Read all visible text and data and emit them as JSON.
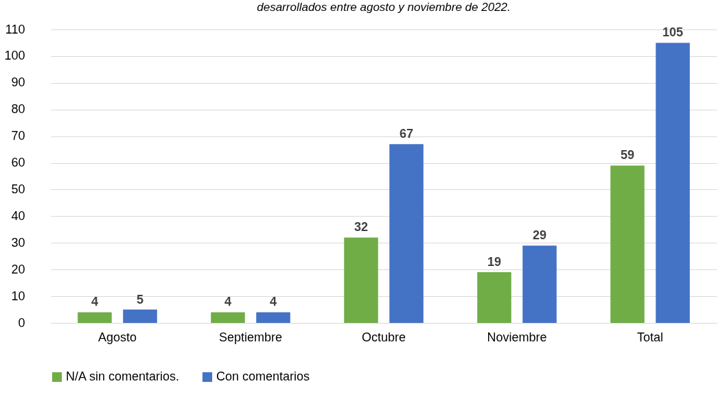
{
  "chart_data": {
    "type": "bar",
    "title": "desarrollados entre agosto y noviembre de 2022.",
    "categories": [
      "Agosto",
      "Septiembre",
      "Octubre",
      "Noviembre",
      "Total"
    ],
    "series": [
      {
        "name": "N/A sin comentarios.",
        "color": "#70ad47",
        "values": [
          4,
          4,
          32,
          19,
          59
        ]
      },
      {
        "name": "Con comentarios",
        "color": "#4472c4",
        "values": [
          5,
          4,
          67,
          29,
          105
        ]
      }
    ],
    "ylim": [
      0,
      110
    ],
    "yticks": [
      0,
      10,
      20,
      30,
      40,
      50,
      60,
      70,
      80,
      90,
      100,
      110
    ],
    "grid": "y",
    "legend": "bottom",
    "data_labels": true
  }
}
